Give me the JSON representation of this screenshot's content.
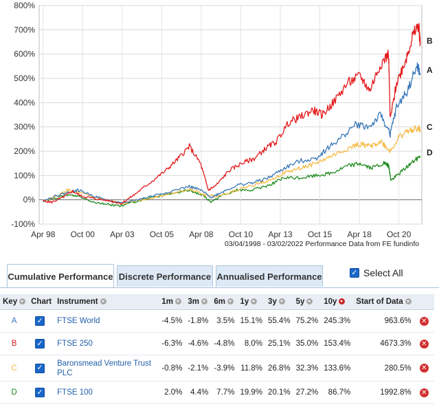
{
  "chart_data": {
    "type": "line",
    "xlabel": "",
    "ylabel": "",
    "ylim": [
      -100,
      800
    ],
    "y_ticks": [
      "800%",
      "700%",
      "600%",
      "500%",
      "400%",
      "300%",
      "200%",
      "100%",
      "0%",
      "-100%"
    ],
    "x_ticks": [
      "Apr 98",
      "Oct 00",
      "Apr 03",
      "Oct 05",
      "Apr 08",
      "Oct 10",
      "Apr 13",
      "Oct 15",
      "Apr 18",
      "Oct 20"
    ],
    "grid": true,
    "source_note": "03/04/1998 - 03/02/2022 Performance Data from FE fundinfo",
    "series": [
      {
        "name": "B",
        "color": "#e31a1c",
        "x": [
          1998.25,
          1998.8,
          1999.5,
          2000.1,
          2000.7,
          2001.5,
          2002.5,
          2003.2,
          2004.0,
          2005.0,
          2006.0,
          2006.8,
          2007.5,
          2008.2,
          2008.7,
          2009.2,
          2010.0,
          2010.8,
          2011.6,
          2012.3,
          2013.0,
          2013.8,
          2014.5,
          2015.3,
          2015.9,
          2016.6,
          2017.5,
          2018.3,
          2018.9,
          2019.6,
          2020.1,
          2020.2,
          2020.6,
          2021.2,
          2021.6,
          2022.0,
          2022.1
        ],
        "y": [
          -5,
          -10,
          10,
          35,
          15,
          5,
          -5,
          -15,
          20,
          70,
          120,
          170,
          220,
          150,
          40,
          60,
          120,
          150,
          170,
          210,
          240,
          320,
          340,
          370,
          350,
          400,
          480,
          510,
          450,
          560,
          600,
          330,
          480,
          580,
          670,
          720,
          640
        ]
      },
      {
        "name": "A",
        "color": "#3a78b8",
        "x": [
          1998.25,
          1999.0,
          1999.8,
          2000.5,
          2001.5,
          2002.5,
          2003.2,
          2004.5,
          2006.0,
          2007.5,
          2008.2,
          2008.9,
          2009.5,
          2010.5,
          2011.5,
          2012.5,
          2013.5,
          2014.5,
          2015.5,
          2016.2,
          2017.0,
          2018.0,
          2018.9,
          2019.6,
          2020.2,
          2020.6,
          2021.3,
          2021.9,
          2022.1
        ],
        "y": [
          -5,
          15,
          30,
          40,
          15,
          -5,
          -15,
          5,
          30,
          55,
          40,
          10,
          30,
          60,
          70,
          90,
          130,
          160,
          170,
          210,
          250,
          310,
          300,
          350,
          270,
          380,
          450,
          550,
          520
        ]
      },
      {
        "name": "C",
        "color": "#f5b942",
        "x": [
          1998.25,
          1999.0,
          1999.8,
          2000.5,
          2001.5,
          2002.5,
          2003.2,
          2004.5,
          2006.0,
          2007.5,
          2008.5,
          2009.3,
          2010.5,
          2011.5,
          2012.5,
          2013.5,
          2014.5,
          2015.5,
          2016.5,
          2017.5,
          2018.3,
          2018.9,
          2019.6,
          2020.2,
          2020.8,
          2021.5,
          2022.0,
          2022.1
        ],
        "y": [
          -5,
          10,
          40,
          30,
          10,
          -5,
          -15,
          0,
          20,
          45,
          20,
          15,
          40,
          60,
          80,
          110,
          130,
          150,
          180,
          210,
          230,
          220,
          240,
          200,
          260,
          290,
          295,
          285
        ]
      },
      {
        "name": "D",
        "color": "#1e8a1e",
        "x": [
          1998.25,
          1999.0,
          1999.8,
          2000.5,
          2001.5,
          2002.5,
          2003.2,
          2004.5,
          2006.0,
          2007.5,
          2008.3,
          2008.9,
          2009.6,
          2010.5,
          2011.5,
          2012.5,
          2013.5,
          2014.5,
          2015.5,
          2016.5,
          2017.5,
          2018.3,
          2019.0,
          2019.8,
          2020.1,
          2020.25,
          2020.8,
          2021.5,
          2022.1
        ],
        "y": [
          -5,
          5,
          20,
          15,
          -10,
          -20,
          -25,
          0,
          20,
          40,
          20,
          -10,
          20,
          40,
          40,
          60,
          90,
          90,
          100,
          110,
          140,
          150,
          130,
          150,
          140,
          80,
          110,
          150,
          180
        ]
      }
    ]
  },
  "tabs": [
    {
      "label": "Cumulative Performance",
      "active": true
    },
    {
      "label": "Discrete Performance",
      "active": false
    },
    {
      "label": "Annualised Performance",
      "active": false
    }
  ],
  "select_all_label": "Select All",
  "table": {
    "headers": {
      "key": "Key",
      "chart": "Chart",
      "instrument": "Instrument",
      "m1": "1m",
      "m3": "3m",
      "m6": "6m",
      "y1": "1y",
      "y3": "3y",
      "y5": "5y",
      "y10": "10y",
      "start": "Start of Data"
    },
    "rows": [
      {
        "key": "A",
        "key_color": "#3a78b8",
        "instrument": "FTSE World",
        "m1": "-4.5%",
        "m3": "-1.8%",
        "m6": "3.5%",
        "y1": "15.1%",
        "y3": "55.4%",
        "y5": "75.2%",
        "y10": "245.3%",
        "start": "963.6%"
      },
      {
        "key": "B",
        "key_color": "#e31a1c",
        "instrument": "FTSE 250",
        "m1": "-6.3%",
        "m3": "-4.6%",
        "m6": "-4.8%",
        "y1": "8.0%",
        "y3": "25.1%",
        "y5": "35.0%",
        "y10": "153.4%",
        "start": "4673.3%"
      },
      {
        "key": "C",
        "key_color": "#f5b942",
        "instrument": "Baronsmead Venture Trust PLC",
        "m1": "-0.8%",
        "m3": "-2.1%",
        "m6": "-3.9%",
        "y1": "11.8%",
        "y3": "26.8%",
        "y5": "32.3%",
        "y10": "133.6%",
        "start": "280.5%"
      },
      {
        "key": "D",
        "key_color": "#1e8a1e",
        "instrument": "FTSE 100",
        "m1": "2.0%",
        "m3": "4.4%",
        "m6": "7.7%",
        "y1": "19.9%",
        "y3": "20.1%",
        "y5": "27.2%",
        "y10": "86.7%",
        "start": "1992.8%"
      }
    ]
  }
}
